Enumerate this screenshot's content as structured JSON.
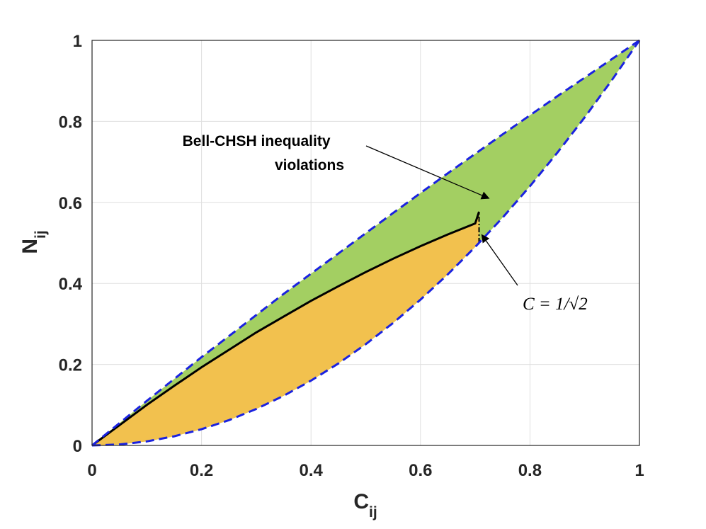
{
  "chart_data": {
    "type": "area",
    "xlabel": "C",
    "xlabel_sub": "ij",
    "ylabel": "N",
    "ylabel_sub": "ij",
    "xlim": [
      0,
      1
    ],
    "ylim": [
      0,
      1
    ],
    "xticks": [
      "0",
      "0.2",
      "0.4",
      "0.6",
      "0.8",
      "1"
    ],
    "yticks": [
      "0",
      "0.2",
      "0.4",
      "0.6",
      "0.8",
      "1"
    ],
    "grid": true,
    "colors": {
      "green_region": "#a3cf62",
      "orange_region": "#f2c14e",
      "boundary": "#1a22e0",
      "middle_curve": "#000000"
    },
    "series": [
      {
        "role": "upper-boundary",
        "style": "dashed",
        "x": [
          0,
          0.05,
          0.1,
          0.15,
          0.2,
          0.25,
          0.3,
          0.35,
          0.4,
          0.45,
          0.5,
          0.55,
          0.6,
          0.65,
          0.7,
          0.75,
          0.8,
          0.85,
          0.9,
          0.95,
          1.0
        ],
        "y": [
          0,
          0.055,
          0.11,
          0.164,
          0.218,
          0.27,
          0.322,
          0.374,
          0.424,
          0.474,
          0.524,
          0.574,
          0.623,
          0.672,
          0.72,
          0.768,
          0.815,
          0.862,
          0.908,
          0.954,
          1.0
        ]
      },
      {
        "role": "lower-boundary",
        "style": "dashed",
        "x": [
          0,
          0.05,
          0.1,
          0.15,
          0.2,
          0.25,
          0.3,
          0.35,
          0.4,
          0.45,
          0.5,
          0.55,
          0.6,
          0.65,
          0.7,
          0.75,
          0.8,
          0.85,
          0.9,
          0.95,
          1.0
        ],
        "y": [
          0,
          0.0025,
          0.01,
          0.0225,
          0.04,
          0.0625,
          0.09,
          0.1225,
          0.16,
          0.2025,
          0.25,
          0.3025,
          0.36,
          0.4225,
          0.49,
          0.5625,
          0.64,
          0.7225,
          0.81,
          0.9025,
          1.0
        ]
      },
      {
        "role": "middle-curve",
        "style": "solid",
        "x": [
          0,
          0.05,
          0.1,
          0.15,
          0.2,
          0.25,
          0.3,
          0.35,
          0.4,
          0.45,
          0.5,
          0.55,
          0.6,
          0.65,
          0.7,
          0.707
        ],
        "y": [
          0,
          0.05,
          0.1,
          0.147,
          0.193,
          0.236,
          0.279,
          0.318,
          0.357,
          0.393,
          0.428,
          0.461,
          0.492,
          0.521,
          0.548,
          0.577
        ]
      }
    ],
    "vertical_line": {
      "x": 0.707,
      "y_from": 0.5,
      "y_to": 0.577,
      "style": "dash-dot"
    },
    "annotations": [
      {
        "text_lines": [
          "Bell-CHSH inequality",
          "violations"
        ],
        "x": 0.45,
        "y": 0.8,
        "arrow_to": [
          0.725,
          0.61
        ]
      },
      {
        "text": "C = 1/√2",
        "x": 0.85,
        "y": 0.355,
        "arrow_to": [
          0.712,
          0.52
        ]
      }
    ]
  }
}
